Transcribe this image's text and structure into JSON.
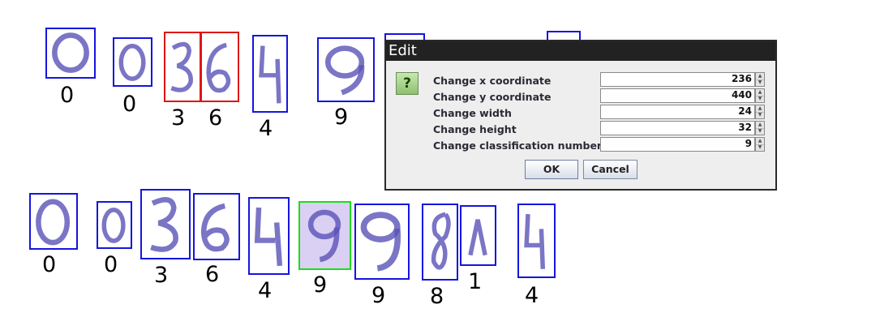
{
  "top_row": [
    {
      "label": "0",
      "frame": "blue"
    },
    {
      "label": "0",
      "frame": "blue"
    },
    {
      "label": "3",
      "frame": "red"
    },
    {
      "label": "6",
      "frame": "red"
    },
    {
      "label": "4",
      "frame": "blue"
    },
    {
      "label": "9",
      "frame": "blue"
    }
  ],
  "bottom_row": [
    {
      "label": "0",
      "frame": "blue"
    },
    {
      "label": "0",
      "frame": "blue"
    },
    {
      "label": "3",
      "frame": "blue"
    },
    {
      "label": "6",
      "frame": "blue"
    },
    {
      "label": "4",
      "frame": "blue"
    },
    {
      "label": "9",
      "frame": "green",
      "selected": true
    },
    {
      "label": "9",
      "frame": "blue"
    },
    {
      "label": "8",
      "frame": "blue"
    },
    {
      "label": "1",
      "frame": "blue"
    },
    {
      "label": "4",
      "frame": "blue"
    }
  ],
  "dialog": {
    "title": "Edit",
    "icon_glyph": "?",
    "fields": [
      {
        "label": "Change x coordinate",
        "value": "236"
      },
      {
        "label": "Change y coordinate",
        "value": "440"
      },
      {
        "label": "Change width",
        "value": "24"
      },
      {
        "label": "Change height",
        "value": "32"
      },
      {
        "label": "Change classification number",
        "value": "9"
      }
    ],
    "ok_label": "OK",
    "cancel_label": "Cancel"
  },
  "colors": {
    "box_default": "#1515e0",
    "box_edit": "#e01515",
    "box_selected": "#18e018",
    "ink": "#5a52b8"
  }
}
